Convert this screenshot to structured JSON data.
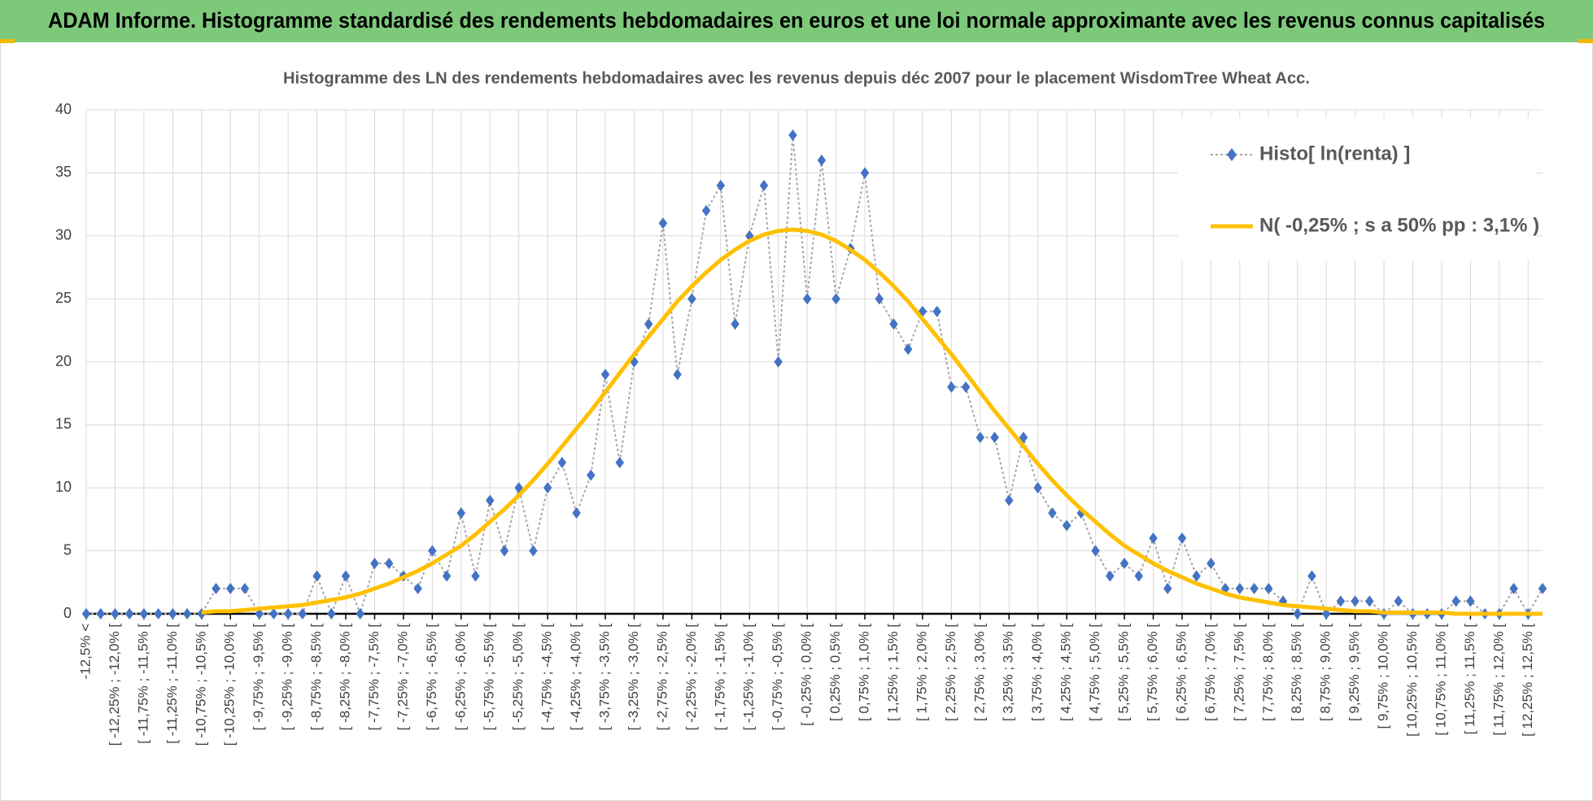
{
  "header": {
    "title": "ADAM Informe. Histogramme standardisé des rendements hebdomadaires en euros et une loi normale approximante avec les revenus connus capitalisés"
  },
  "chart_data": {
    "type": "line",
    "title": "Histogramme des LN des rendements hebdomadaires avec les revenus depuis déc 2007 pour le placement WisdomTree  Wheat Acc.",
    "categories": [
      "-12,5% <",
      null,
      "[ -12,25% ; -12,0% [",
      null,
      "[ -11,75% ; -11,5% [",
      null,
      "[ -11,25% ; -11,0% [",
      null,
      "[ -10,75% ; -10,5% [",
      null,
      "[ -10,25% ; -10,0% [",
      null,
      "[ -9,75% ; -9,5% [",
      null,
      "[ -9,25% ; -9,0% [",
      null,
      "[ -8,75% ; -8,5% [",
      null,
      "[ -8,25% ; -8,0% [",
      null,
      "[ -7,75% ; -7,5% [",
      null,
      "[ -7,25% ; -7,0% [",
      null,
      "[ -6,75% ; -6,5% [",
      null,
      "[ -6,25% ; -6,0% [",
      null,
      "[ -5,75% ; -5,5% [",
      null,
      "[ -5,25% ; -5,0% [",
      null,
      "[ -4,75% ; -4,5% [",
      null,
      "[ -4,25% ; -4,0% [",
      null,
      "[ -3,75% ; -3,5% [",
      null,
      "[ -3,25% ; -3,0% [",
      null,
      "[ -2,75% ; -2,5% [",
      null,
      "[ -2,25% ; -2,0% [",
      null,
      "[ -1,75% ; -1,5% [",
      null,
      "[ -1,25% ; -1,0% [",
      null,
      "[ -0,75% ; -0,5% [",
      null,
      "[ -0,25% ; 0,0% [",
      null,
      "[ 0,25% ; 0,5% [",
      null,
      "[ 0,75% ; 1,0% [",
      null,
      "[ 1,25% ; 1,5% [",
      null,
      "[ 1,75% ; 2,0% [",
      null,
      "[ 2,25% ; 2,5% [",
      null,
      "[ 2,75% ; 3,0% [",
      null,
      "[ 3,25% ; 3,5% [",
      null,
      "[ 3,75% ; 4,0% [",
      null,
      "[ 4,25% ; 4,5% [",
      null,
      "[ 4,75% ; 5,0% [",
      null,
      "[ 5,25% ; 5,5% [",
      null,
      "[ 5,75% ; 6,0% [",
      null,
      "[ 6,25% ; 6,5% [",
      null,
      "[ 6,75% ; 7,0% [",
      null,
      "[ 7,25% ; 7,5% [",
      null,
      "[ 7,75% ; 8,0% [",
      null,
      "[ 8,25% ; 8,5% [",
      null,
      "[ 8,75% ; 9,0% [",
      null,
      "[ 9,25% ; 9,5% [",
      null,
      "[ 9,75% ; 10,0% [",
      null,
      "[ 10,25% ; 10,5% [",
      null,
      "[ 10,75% ; 11,0% [",
      null,
      "[ 11,25% ; 11,5% [",
      null,
      "[ 11,75% ; 12,0% [",
      null,
      "[ 12,25% ; 12,5% [",
      null
    ],
    "series": [
      {
        "name": "Histo[ ln(renta) ]",
        "color": "#4472c4",
        "line_color": "#a6a6a6",
        "values": [
          0,
          0,
          0,
          0,
          0,
          0,
          0,
          0,
          0,
          2,
          2,
          2,
          0,
          0,
          0,
          0,
          3,
          0,
          3,
          0,
          4,
          4,
          3,
          2,
          5,
          3,
          8,
          3,
          9,
          5,
          10,
          5,
          10,
          12,
          8,
          11,
          19,
          12,
          20,
          23,
          31,
          19,
          25,
          32,
          34,
          23,
          30,
          34,
          20,
          38,
          25,
          36,
          25,
          29,
          35,
          25,
          23,
          21,
          24,
          24,
          18,
          18,
          14,
          14,
          9,
          14,
          10,
          8,
          7,
          8,
          5,
          3,
          4,
          3,
          6,
          2,
          6,
          3,
          4,
          2,
          2,
          2,
          2,
          1,
          0,
          3,
          0,
          1,
          1,
          1,
          0,
          1,
          0,
          0,
          0,
          1,
          1,
          0,
          0,
          2,
          0,
          2
        ]
      },
      {
        "name": "N( -0,25% ; s a 50% pp : 3,1% )",
        "color": "#ffc000",
        "values": [
          null,
          null,
          null,
          null,
          null,
          null,
          null,
          null,
          0.1,
          0.2,
          0.2,
          0.3,
          0.4,
          0.5,
          0.6,
          0.7,
          0.9,
          1.1,
          1.3,
          1.6,
          2.0,
          2.4,
          2.9,
          3.4,
          4.0,
          4.7,
          5.4,
          6.3,
          7.3,
          8.3,
          9.4,
          10.6,
          11.9,
          13.3,
          14.7,
          16.1,
          17.6,
          19.1,
          20.6,
          22.0,
          23.4,
          24.8,
          26.0,
          27.1,
          28.1,
          28.9,
          29.6,
          30.1,
          30.4,
          30.5,
          30.4,
          30.1,
          29.6,
          28.9,
          28.1,
          27.1,
          26.0,
          24.8,
          23.4,
          22.0,
          20.6,
          19.1,
          17.6,
          16.1,
          14.7,
          13.3,
          11.9,
          10.6,
          9.4,
          8.3,
          7.3,
          6.3,
          5.4,
          4.7,
          4.0,
          3.4,
          2.9,
          2.4,
          2.0,
          1.6,
          1.3,
          1.1,
          0.9,
          0.7,
          0.6,
          0.5,
          0.4,
          0.3,
          0.2,
          0.2,
          0.1,
          0.1,
          0.1,
          0.1,
          0.1,
          0,
          0,
          0,
          0,
          0,
          0,
          0
        ]
      }
    ],
    "ylim": [
      0,
      40
    ],
    "yticks": [
      0,
      5,
      10,
      15,
      20,
      25,
      30,
      35,
      40
    ],
    "grid": true,
    "legend": "top-right"
  }
}
